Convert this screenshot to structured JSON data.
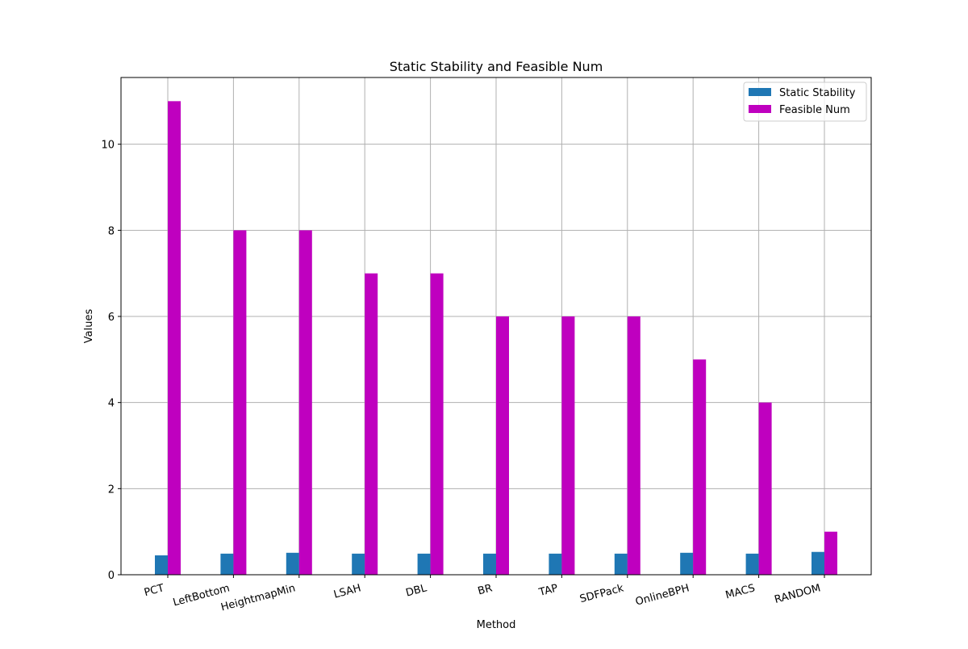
{
  "chart_data": {
    "type": "bar",
    "title": "Static Stability and Feasible Num",
    "xlabel": "Method",
    "ylabel": "Values",
    "categories": [
      "PCT",
      "LeftBottom",
      "HeightmapMin",
      "LSAH",
      "DBL",
      "BR",
      "TAP",
      "SDFPack",
      "OnlineBPH",
      "MACS",
      "RANDOM"
    ],
    "series": [
      {
        "name": "Static Stability",
        "color": "#1f77b4",
        "values": [
          0.45,
          0.49,
          0.51,
          0.49,
          0.49,
          0.49,
          0.49,
          0.49,
          0.51,
          0.49,
          0.53
        ]
      },
      {
        "name": "Feasible Num",
        "color": "#bf00bf",
        "values": [
          11,
          8,
          8,
          7,
          7,
          6,
          6,
          6,
          5,
          4,
          1
        ]
      }
    ],
    "ylim": [
      0,
      11.55
    ],
    "yticks": [
      0,
      2,
      4,
      6,
      8,
      10
    ],
    "grid": true,
    "legend_position": "top-right",
    "xtick_rotation": -15
  }
}
